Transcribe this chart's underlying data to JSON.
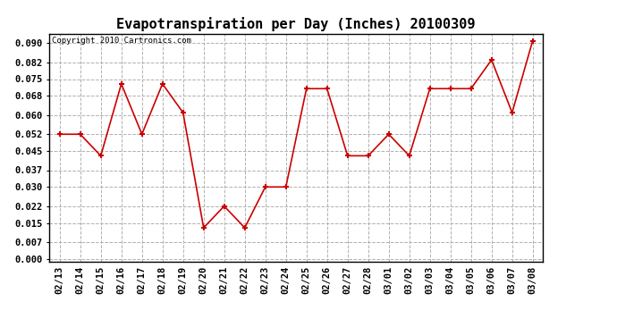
{
  "title": "Evapotranspiration per Day (Inches) 20100309",
  "copyright_text": "Copyright 2010 Cartronics.com",
  "dates": [
    "02/13",
    "02/14",
    "02/15",
    "02/16",
    "02/17",
    "02/18",
    "02/19",
    "02/20",
    "02/21",
    "02/22",
    "02/23",
    "02/24",
    "02/25",
    "02/26",
    "02/27",
    "02/28",
    "03/01",
    "03/02",
    "03/03",
    "03/04",
    "03/05",
    "03/06",
    "03/07",
    "03/08"
  ],
  "values": [
    0.052,
    0.052,
    0.043,
    0.073,
    0.052,
    0.073,
    0.061,
    0.013,
    0.022,
    0.013,
    0.03,
    0.03,
    0.071,
    0.071,
    0.043,
    0.043,
    0.052,
    0.043,
    0.071,
    0.071,
    0.071,
    0.083,
    0.061,
    0.091
  ],
  "line_color": "#cc0000",
  "marker": "+",
  "marker_size": 5,
  "marker_edge_width": 1.5,
  "background_color": "#ffffff",
  "grid_color": "#b0b0b0",
  "ylim_min": -0.001,
  "ylim_max": 0.094,
  "yticks": [
    0.0,
    0.007,
    0.015,
    0.022,
    0.03,
    0.037,
    0.045,
    0.052,
    0.06,
    0.068,
    0.075,
    0.082,
    0.09
  ],
  "title_fontsize": 11,
  "copyright_fontsize": 6.5,
  "tick_fontsize": 7.5,
  "fig_width": 6.9,
  "fig_height": 3.75,
  "dpi": 100
}
